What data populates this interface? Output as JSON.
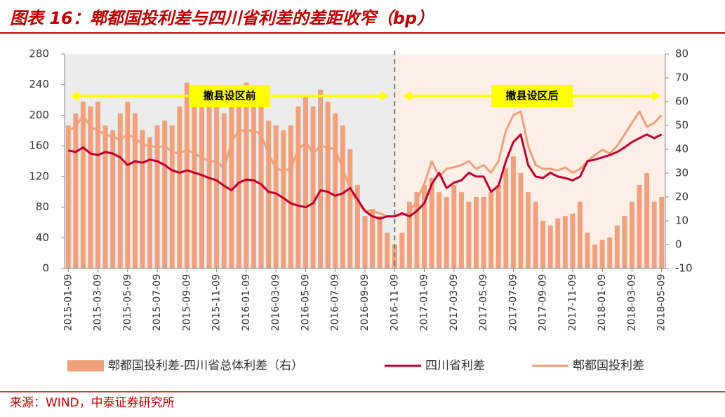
{
  "chart_data": {
    "type": "combo",
    "title": "图表 16：郫都国投利差与四川省利差的差距收窄（bp）",
    "source": "来源：WIND，中泰证券研究所",
    "annotations": [
      "撤县设区前",
      "撤县设区后"
    ],
    "split_at": "2016-11-09",
    "categories": [
      "2015-01-09",
      null,
      null,
      null,
      "2015-03-09",
      null,
      null,
      null,
      "2015-05-09",
      null,
      null,
      null,
      "2015-07-09",
      null,
      null,
      null,
      "2015-09-09",
      null,
      null,
      null,
      "2015-11-09",
      null,
      null,
      null,
      "2016-01-09",
      null,
      null,
      null,
      "2016-03-09",
      null,
      null,
      null,
      "2016-05-09",
      null,
      null,
      null,
      "2016-07-09",
      null,
      null,
      null,
      "2016-09-09",
      null,
      null,
      null,
      "2016-11-09",
      null,
      null,
      null,
      "2017-01-09",
      null,
      null,
      null,
      "2017-03-09",
      null,
      null,
      null,
      "2017-05-09",
      null,
      null,
      null,
      "2017-07-09",
      null,
      null,
      null,
      "2017-09-09",
      null,
      null,
      null,
      "2017-11-09",
      null,
      null,
      null,
      "2018-01-09",
      null,
      null,
      null,
      "2018-03-09",
      null,
      null,
      null,
      "2018-05-09"
    ],
    "ylim": [
      0,
      280
    ],
    "yticks": [
      0,
      40,
      80,
      120,
      160,
      200,
      240,
      280
    ],
    "y2lim": [
      -10,
      80
    ],
    "y2ticks": [
      -10,
      0,
      10,
      20,
      30,
      40,
      50,
      60,
      70,
      80
    ],
    "series": [
      {
        "name": "郫都国投利差-四川省总体利差（右）",
        "type": "bar",
        "axis": "y2",
        "color": "#f0a07c",
        "values": [
          50,
          55,
          60,
          58,
          60,
          50,
          48,
          55,
          60,
          55,
          48,
          45,
          50,
          52,
          50,
          58,
          68,
          65,
          62,
          60,
          60,
          55,
          62,
          65,
          68,
          66,
          60,
          52,
          50,
          48,
          50,
          58,
          62,
          58,
          65,
          60,
          55,
          50,
          40,
          25,
          12,
          15,
          12,
          5,
          0,
          5,
          18,
          22,
          25,
          28,
          22,
          20,
          25,
          22,
          18,
          20,
          20,
          22,
          25,
          32,
          37,
          30,
          22,
          18,
          10,
          8,
          11,
          12,
          13,
          18,
          5,
          0,
          2,
          3,
          8,
          12,
          18,
          25,
          30,
          18,
          20
        ]
      },
      {
        "name": "四川省利差",
        "type": "line",
        "color": "#c00030",
        "values": [
          154,
          152,
          158,
          150,
          148,
          152,
          150,
          145,
          135,
          140,
          138,
          142,
          140,
          135,
          128,
          125,
          128,
          125,
          122,
          118,
          115,
          108,
          102,
          112,
          116,
          115,
          110,
          100,
          98,
          92,
          85,
          82,
          80,
          85,
          102,
          100,
          95,
          98,
          105,
          90,
          75,
          68,
          65,
          68,
          68,
          72,
          68,
          75,
          85,
          110,
          125,
          105,
          112,
          115,
          125,
          120,
          120,
          100,
          108,
          140,
          165,
          175,
          135,
          120,
          118,
          125,
          120,
          118,
          115,
          120,
          140,
          142,
          145,
          148,
          152,
          158,
          165,
          170,
          175,
          170,
          175
        ]
      },
      {
        "name": "郫都国投利差",
        "type": "line",
        "color": "#f0a07c",
        "values": [
          180,
          185,
          200,
          185,
          180,
          175,
          172,
          168,
          175,
          170,
          162,
          160,
          158,
          160,
          152,
          150,
          155,
          150,
          145,
          140,
          140,
          130,
          165,
          180,
          180,
          180,
          175,
          150,
          130,
          128,
          130,
          155,
          165,
          150,
          160,
          158,
          155,
          130,
          105,
          85,
          75,
          75,
          72,
          68,
          68,
          70,
          72,
          90,
          110,
          140,
          120,
          130,
          132,
          135,
          140,
          130,
          135,
          125,
          140,
          180,
          200,
          205,
          160,
          135,
          130,
          130,
          128,
          132,
          125,
          130,
          140,
          148,
          155,
          150,
          160,
          175,
          190,
          205,
          185,
          190,
          200
        ]
      }
    ]
  }
}
